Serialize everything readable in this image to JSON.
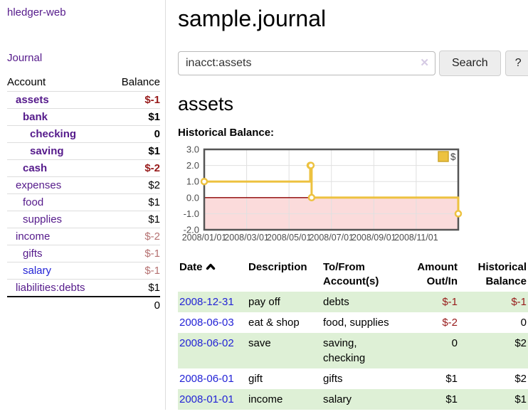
{
  "sidebar": {
    "app_title": "hledger-web",
    "journal_label": "Journal",
    "accounts_table": {
      "headers": {
        "account": "Account",
        "balance": "Balance"
      },
      "rows": [
        {
          "name": "assets",
          "balance": "$-1"
        },
        {
          "name": "bank",
          "balance": "$1"
        },
        {
          "name": "checking",
          "balance": "0"
        },
        {
          "name": "saving",
          "balance": "$1"
        },
        {
          "name": "cash",
          "balance": "$-2"
        },
        {
          "name": "expenses",
          "balance": "$2"
        },
        {
          "name": "food",
          "balance": "$1"
        },
        {
          "name": "supplies",
          "balance": "$1"
        },
        {
          "name": "income",
          "balance": "$-2"
        },
        {
          "name": "gifts",
          "balance": "$-1"
        },
        {
          "name": "salary",
          "balance": "$-1"
        },
        {
          "name": "liabilities:debts",
          "balance": "$1"
        }
      ],
      "total": "0"
    }
  },
  "header": {
    "title": "sample.journal"
  },
  "search": {
    "query": "inacct:assets",
    "clear_icon": "✕",
    "search_button": "Search",
    "help_button": "?"
  },
  "account_page": {
    "title": "assets"
  },
  "chart_data": {
    "type": "line",
    "style": "step",
    "title": "Historical Balance:",
    "series": [
      {
        "name": "$",
        "color": "#EDC240",
        "legend_box_border": "#cda62c",
        "points": [
          [
            "2008-01-01",
            1
          ],
          [
            "2008-06-01",
            2
          ],
          [
            "2008-06-02",
            2
          ],
          [
            "2008-06-03",
            0
          ],
          [
            "2008-12-31",
            -1
          ]
        ]
      }
    ],
    "x_ticks": [
      {
        "label": "2008/01/01",
        "month": 0
      },
      {
        "label": "2008/03/01",
        "month": 2
      },
      {
        "label": "2008/05/01",
        "month": 4
      },
      {
        "label": "2008/07/01",
        "month": 6
      },
      {
        "label": "2008/09/01",
        "month": 8
      },
      {
        "label": "2008/11/01",
        "month": 10
      }
    ],
    "y_ticks": [
      "3.0",
      "2.0",
      "1.0",
      "0.0",
      "-1.0",
      "-2.0"
    ],
    "ylim": [
      -2,
      3
    ],
    "xlim_months": [
      0,
      11.984
    ],
    "grid": true,
    "legend_position": "top-right",
    "frame_color": "#555555",
    "grid_color": "#e0e0e0",
    "tick_text_color": "#4d4d4d",
    "zero_line_color": "#8b0000",
    "negative_region_color": "#fbdbdb"
  },
  "register": {
    "columns": {
      "date": "Date",
      "description": "Description",
      "tofrom": "To/From Account(s)",
      "amount": "Amount Out/In",
      "historical": "Historical Balance"
    },
    "sort_icon": "caret-up",
    "rows": [
      {
        "date": "2008-12-31",
        "description": "pay off",
        "accounts": "debts",
        "amount": "$-1",
        "balance": "$-1"
      },
      {
        "date": "2008-06-03",
        "description": "eat & shop",
        "accounts": "food, supplies",
        "amount": "$-2",
        "balance": "0"
      },
      {
        "date": "2008-06-02",
        "description": "save",
        "accounts": "saving, checking",
        "amount": "0",
        "balance": "$2"
      },
      {
        "date": "2008-06-01",
        "description": "gift",
        "accounts": "gifts",
        "amount": "$1",
        "balance": "$2"
      },
      {
        "date": "2008-01-01",
        "description": "income",
        "accounts": "salary",
        "amount": "$1",
        "balance": "$1"
      }
    ]
  }
}
